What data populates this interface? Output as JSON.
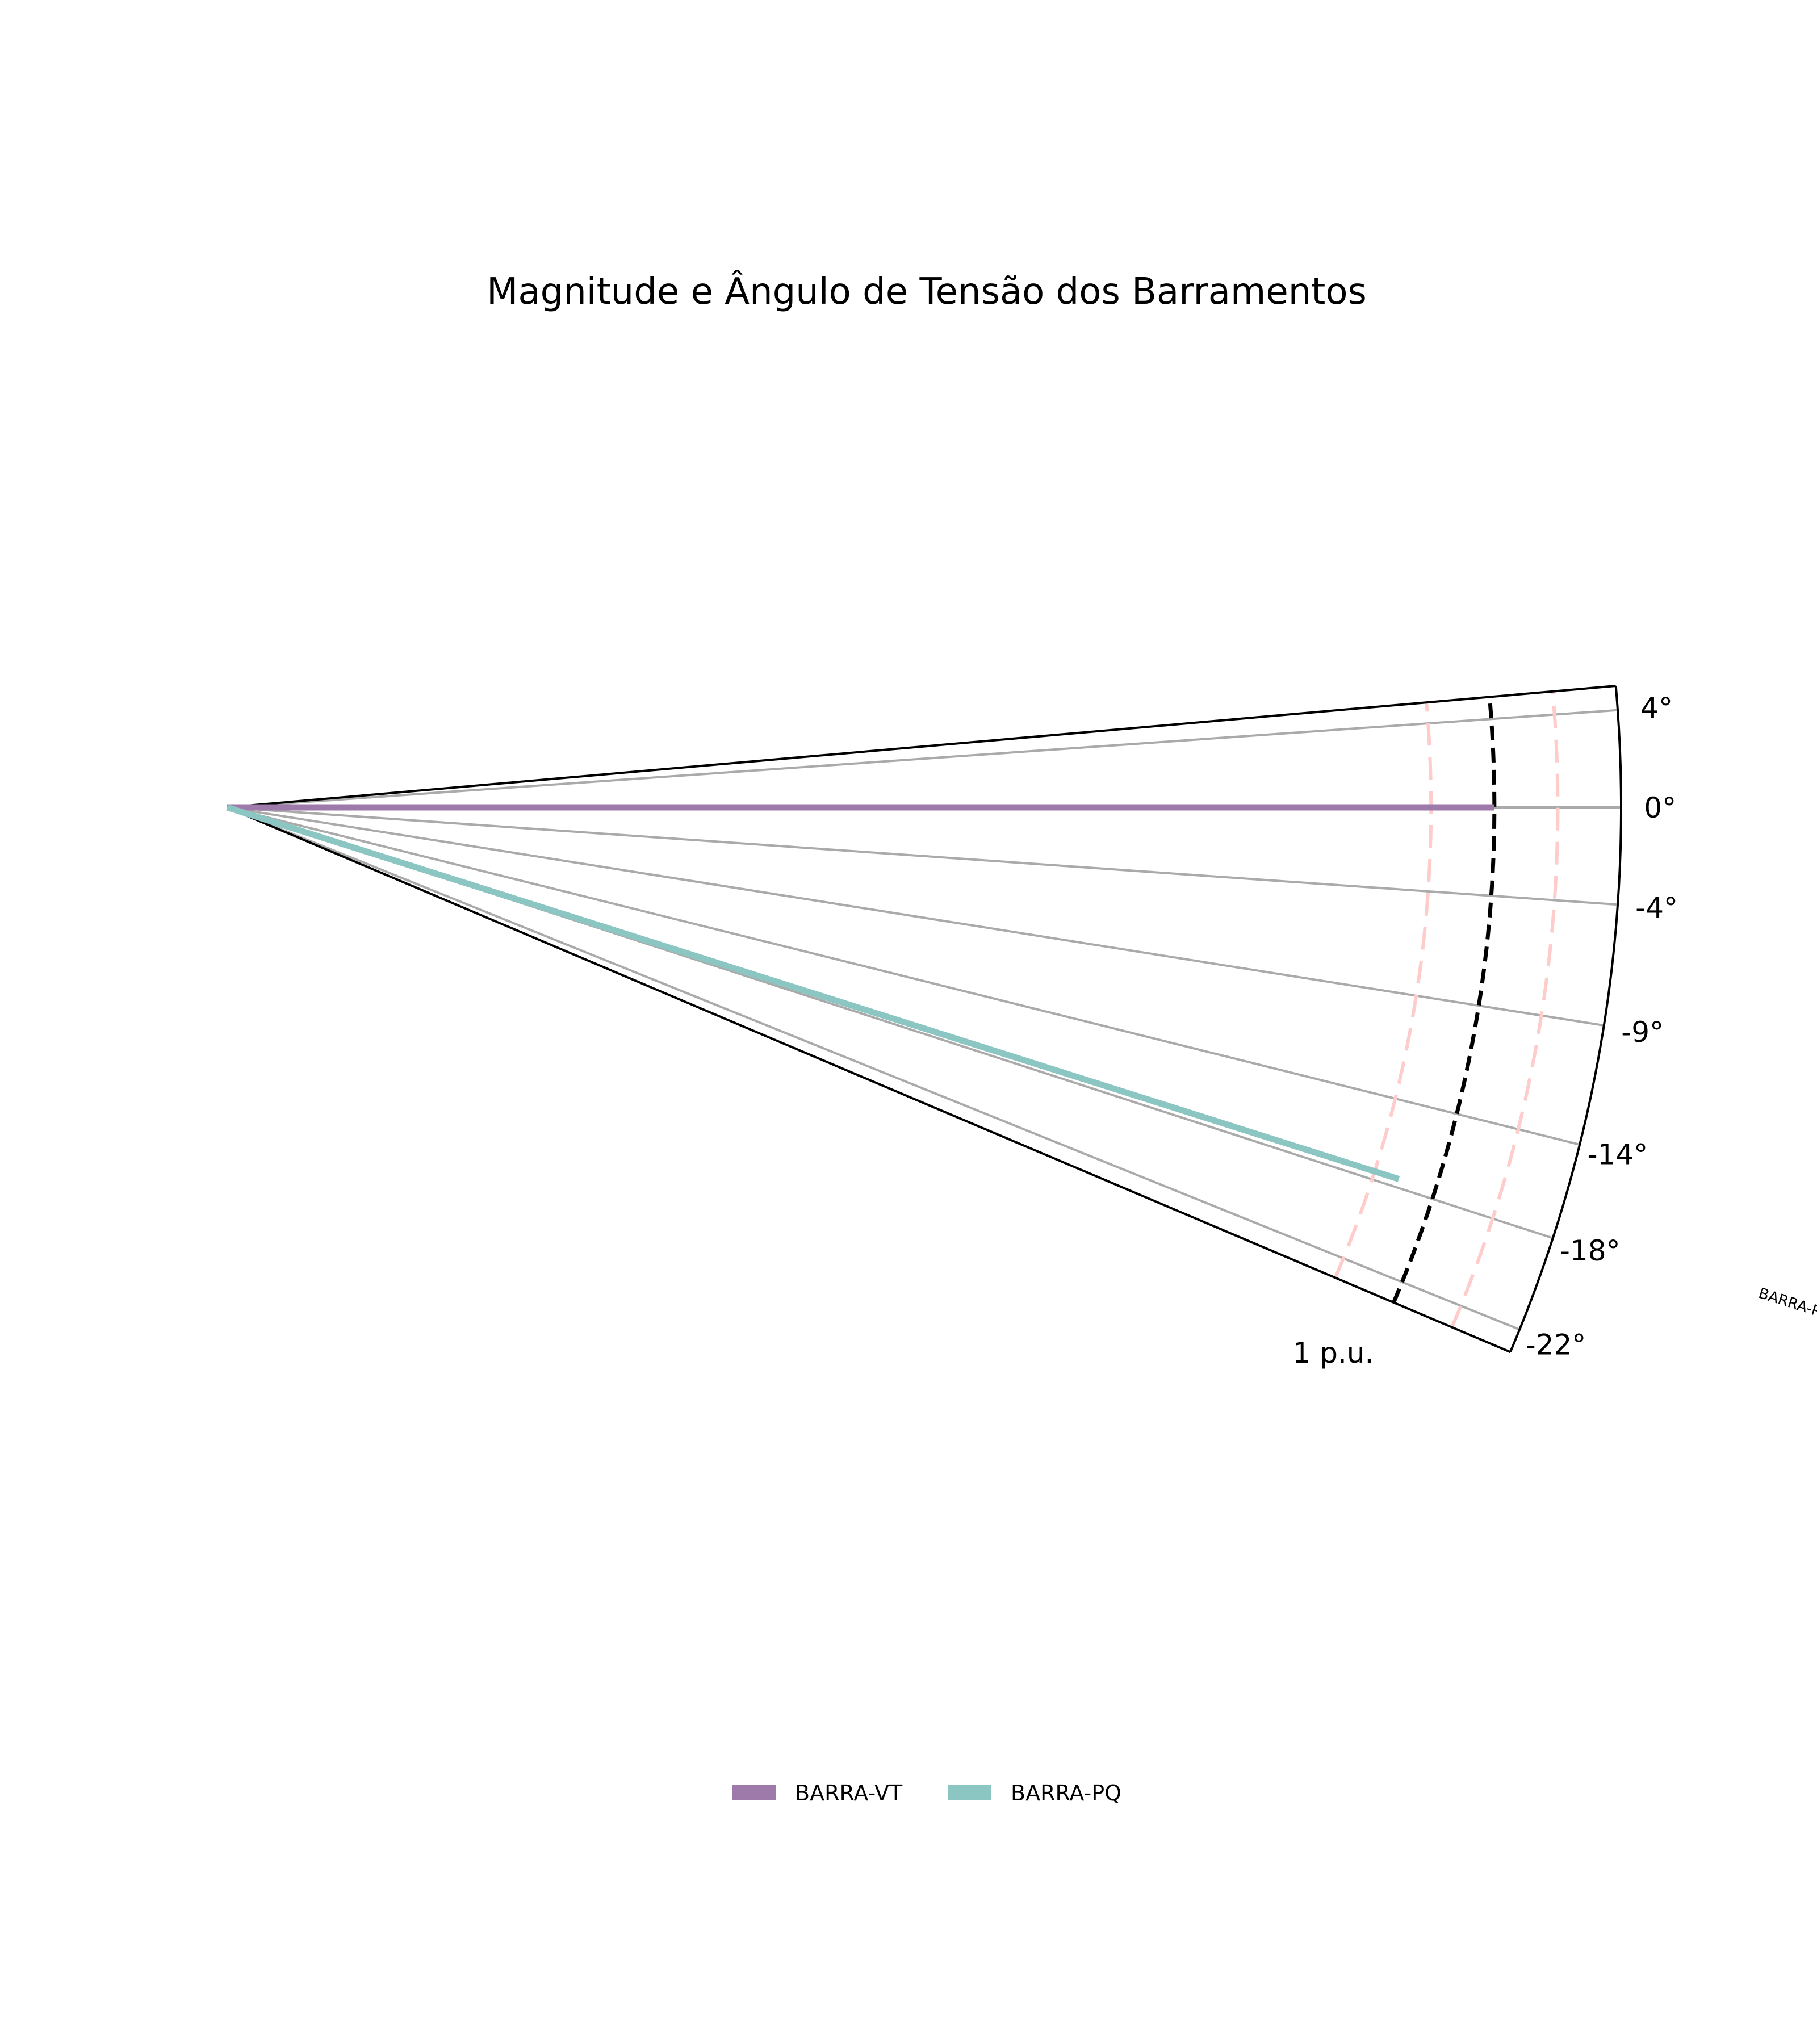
{
  "chart_data": {
    "type": "polar-sector",
    "title": "Magnitude e Ângulo de Tensão dos Barramentos",
    "theta_ticks": [
      "4°",
      "0°",
      "-4°",
      "-9°",
      "-14°",
      "-18°",
      "-22°"
    ],
    "theta_tick_values": [
      4,
      0,
      -4,
      -9,
      -14,
      -18,
      -22
    ],
    "theta_range": [
      -23,
      5
    ],
    "radial_max": 1.1,
    "radial_ref_label": "1 p.u.",
    "reference_circle": 1.0,
    "limit_circles": [
      0.95,
      1.05
    ],
    "series": [
      {
        "name": "BARRA-VT",
        "magnitude": 1.0,
        "angle": 0.0,
        "color": "#9e7aaa"
      },
      {
        "name": "BARRA-PQ",
        "magnitude": 0.97,
        "angle": -17.6,
        "color": "#8cc6c2"
      }
    ],
    "legend_position": "bottom-center",
    "colors": {
      "grid": "#aaaaaa",
      "ref_circle": "#000000",
      "limit_circles": "#ffcccc"
    }
  }
}
